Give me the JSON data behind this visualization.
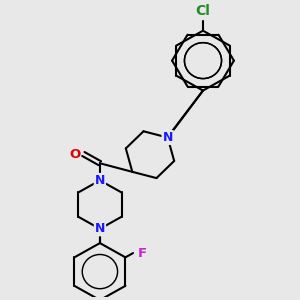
{
  "background_color": "#e8e8e8",
  "bond_color": "#000000",
  "bond_lw": 1.5,
  "N_color": "#1a1aff",
  "O_color": "#dd0000",
  "F_color": "#cc22cc",
  "Cl_color": "#228B22",
  "font_size": 9.0,
  "figsize": [
    3.0,
    3.0
  ],
  "dpi": 100,
  "xlim": [
    0,
    10
  ],
  "ylim": [
    0,
    10
  ]
}
